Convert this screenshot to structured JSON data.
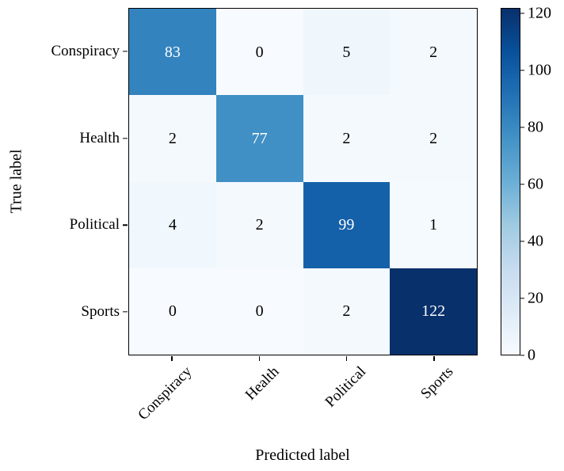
{
  "chart_data": {
    "type": "heatmap",
    "title": "",
    "xlabel": "Predicted label",
    "ylabel": "True label",
    "x_categories": [
      "Conspiracy",
      "Health",
      "Political",
      "Sports"
    ],
    "y_categories": [
      "Conspiracy",
      "Health",
      "Political",
      "Sports"
    ],
    "matrix": [
      [
        83,
        0,
        5,
        2
      ],
      [
        2,
        77,
        2,
        2
      ],
      [
        4,
        2,
        99,
        1
      ],
      [
        0,
        0,
        2,
        122
      ]
    ],
    "vmin": 0,
    "vmax": 122,
    "colorbar_ticks": [
      0,
      20,
      40,
      60,
      80,
      100,
      120
    ],
    "colorbar_position": "right",
    "grid": false,
    "colormap": {
      "name": "Blues",
      "stops": [
        "#f7fbff",
        "#deebf7",
        "#c6dbef",
        "#9ecae1",
        "#6baed6",
        "#4292c6",
        "#2171b5",
        "#08519c",
        "#08306b"
      ]
    },
    "cell_text_color_dark_cells": "#ffffff",
    "cell_text_color_light_cells": "#000000",
    "axis_color": "#000000"
  }
}
